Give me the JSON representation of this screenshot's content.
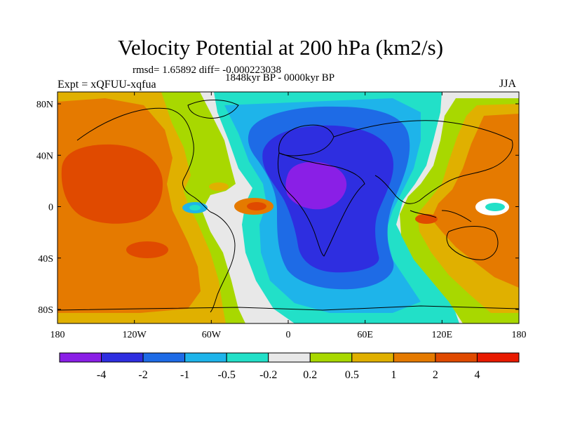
{
  "figure": {
    "title": "Velocity Potential at 200 hPa (km2/s)",
    "stats": "rmsd= 1.65892  diff= -0.000223038",
    "period": "1848kyr BP - 0000kyr BP",
    "experiment": "Expt = xQFUU-xqfua",
    "season": "JJA"
  },
  "axes": {
    "y_ticks": [
      "80N",
      "40N",
      "0",
      "40S",
      "80S"
    ],
    "x_ticks": [
      "180",
      "120W",
      "60W",
      "0",
      "60E",
      "120E",
      "180"
    ]
  },
  "colorbar": {
    "labels": [
      "-4",
      "-2",
      "-1",
      "-0.5",
      "-0.2",
      "0.2",
      "0.5",
      "1",
      "2",
      "4"
    ],
    "colors": [
      "#8a1fe6",
      "#2e2ee0",
      "#1e6be6",
      "#1eb4ea",
      "#22e0c8",
      "#e8e8e8",
      "#a8d800",
      "#e0b000",
      "#e57a00",
      "#e04a00",
      "#e81a00"
    ]
  },
  "map_colors": {
    "background": "#e8e8e8",
    "coastline": "#000000"
  }
}
